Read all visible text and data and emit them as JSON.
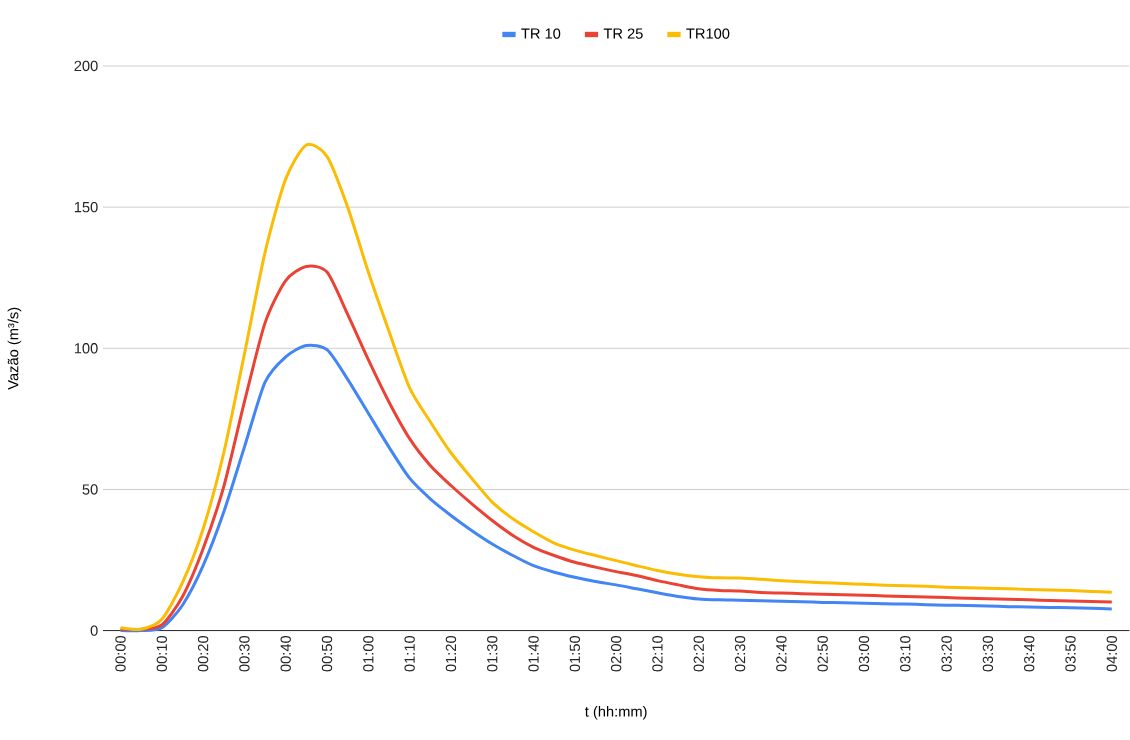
{
  "chart_data": {
    "type": "line",
    "xlabel": "t (hh:mm)",
    "ylabel": "Vazão (m³/s)",
    "categories": [
      "00:00",
      null,
      "00:10",
      null,
      "00:20",
      null,
      "00:30",
      null,
      "00:40",
      null,
      "00:50",
      null,
      "01:00",
      null,
      "01:10",
      null,
      "01:20",
      null,
      "01:30",
      null,
      "01:40",
      null,
      "01:50",
      null,
      "02:00",
      null,
      "02:10",
      null,
      "02:20",
      null,
      "02:30",
      null,
      "02:40",
      null,
      "02:50",
      null,
      "03:00",
      null,
      "03:10",
      null,
      "03:20",
      null,
      "03:30",
      null,
      "03:40",
      null,
      "03:50",
      null,
      "04:00"
    ],
    "series": [
      {
        "name": "TR 10",
        "color": "#4285f4",
        "values": [
          0,
          0,
          1,
          9,
          23,
          42,
          65,
          88,
          97,
          101,
          99.5,
          89,
          77,
          65,
          54,
          46.7,
          40.8,
          35.5,
          30.7,
          26.6,
          23,
          20.7,
          18.9,
          17.4,
          16.2,
          14.8,
          13.4,
          12.1,
          11.2,
          10.9,
          10.8,
          10.6,
          10.4,
          10.2,
          10.0,
          9.9,
          9.7,
          9.5,
          9.4,
          9.2,
          9.0,
          8.9,
          8.7,
          8.5,
          8.4,
          8.2,
          8.1,
          7.9,
          7.7
        ]
      },
      {
        "name": "TR 25",
        "color": "#ea4335",
        "values": [
          0.5,
          0.5,
          2,
          12,
          29,
          51,
          81,
          109,
          124,
          129,
          127,
          112,
          96,
          81,
          68,
          58.5,
          51.4,
          45,
          39,
          33.7,
          29.5,
          26.6,
          24.2,
          22.5,
          20.9,
          19.5,
          17.7,
          16.2,
          14.8,
          14.2,
          14.0,
          13.5,
          13.3,
          13.1,
          12.9,
          12.7,
          12.5,
          12.3,
          12.1,
          11.9,
          11.7,
          11.5,
          11.3,
          11.1,
          10.9,
          10.7,
          10.5,
          10.3,
          10.1
        ]
      },
      {
        "name": "TR100",
        "color": "#fbbc04",
        "values": [
          1,
          0.5,
          4,
          17,
          36,
          63,
          98,
          134,
          160,
          172,
          168,
          150,
          127,
          106,
          86,
          74,
          63,
          54,
          45.5,
          39.6,
          35,
          31,
          28.5,
          26.6,
          24.8,
          23,
          21.3,
          20,
          19.1,
          18.7,
          18.6,
          18.2,
          17.7,
          17.3,
          17.0,
          16.7,
          16.4,
          16.1,
          15.9,
          15.7,
          15.4,
          15.2,
          15.0,
          14.8,
          14.6,
          14.4,
          14.2,
          13.9,
          13.6
        ]
      }
    ],
    "ylim": [
      0,
      200
    ],
    "yticks": [
      0,
      50,
      100,
      150,
      200
    ],
    "grid": "y",
    "legend": "top",
    "line_style": "solid"
  }
}
